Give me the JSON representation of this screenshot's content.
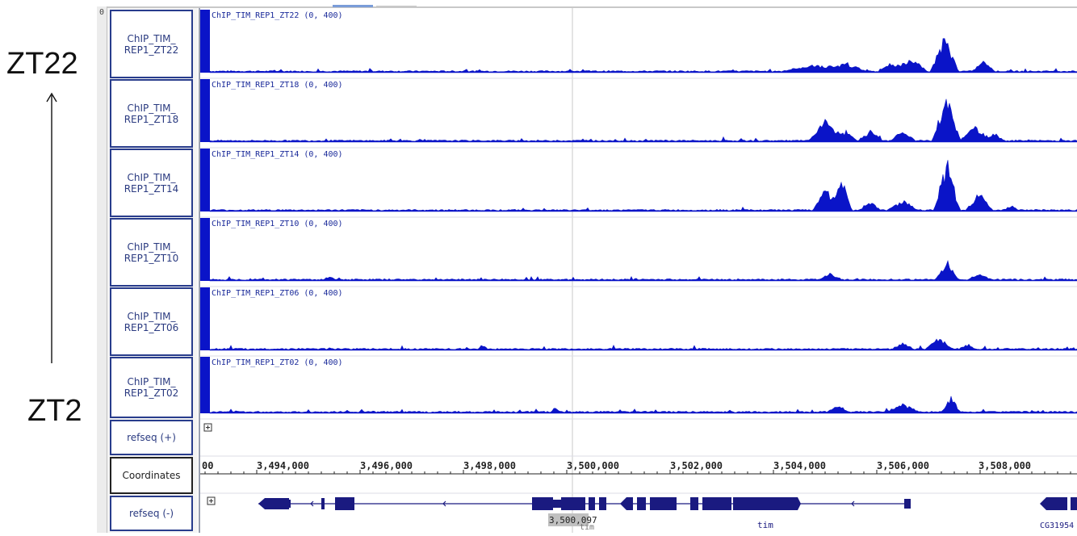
{
  "annotation": {
    "top_label": "ZT22",
    "bottom_label": "ZT2"
  },
  "gutter_zero": "0",
  "tracks": [
    {
      "name_line1": "ChIP_TIM_",
      "name_line2": "REP1_ZT22",
      "header": "ChIP_TIM_REP1_ZT22",
      "range": "(0, 400)"
    },
    {
      "name_line1": "ChIP_TIM_",
      "name_line2": "REP1_ZT18",
      "header": "ChIP_TIM_REP1_ZT18",
      "range": "(0, 400)"
    },
    {
      "name_line1": "ChIP_TIM_",
      "name_line2": "REP1_ZT14",
      "header": "ChIP_TIM_REP1_ZT14",
      "range": "(0, 400)"
    },
    {
      "name_line1": "ChIP_TIM_",
      "name_line2": "REP1_ZT10",
      "header": "ChIP_TIM_REP1_ZT10",
      "range": "(0, 400)"
    },
    {
      "name_line1": "ChIP_TIM_",
      "name_line2": "REP1_ZT06",
      "header": "ChIP_TIM_REP1_ZT06",
      "range": "(0, 400)"
    },
    {
      "name_line1": "ChIP_TIM_",
      "name_line2": "REP1_ZT02",
      "header": "ChIP_TIM_REP1_ZT02",
      "range": "(0, 400)"
    }
  ],
  "refseq_plus": {
    "name": "refseq (+)",
    "expand_icon": "plus-box-icon"
  },
  "coordinates": {
    "name": "Coordinates",
    "leading_tick": "00",
    "ticks": [
      "3,494,000",
      "3,496,000",
      "3,498,000",
      "3,500,000",
      "3,502,000",
      "3,504,000",
      "3,506,000",
      "3,508,000"
    ]
  },
  "refseq_minus": {
    "name": "refseq (-)",
    "expand_icon": "plus-box-icon",
    "cursor_position": "3,500,097",
    "gene_label_left": "tim",
    "gene_label_mid": "tim",
    "gene_label_right": "CG31954"
  },
  "colors": {
    "signal": "#0a14c8",
    "gene": "#1a1a80",
    "track_border": "#283c8c",
    "cursor_line": "#c8c8c8"
  }
}
